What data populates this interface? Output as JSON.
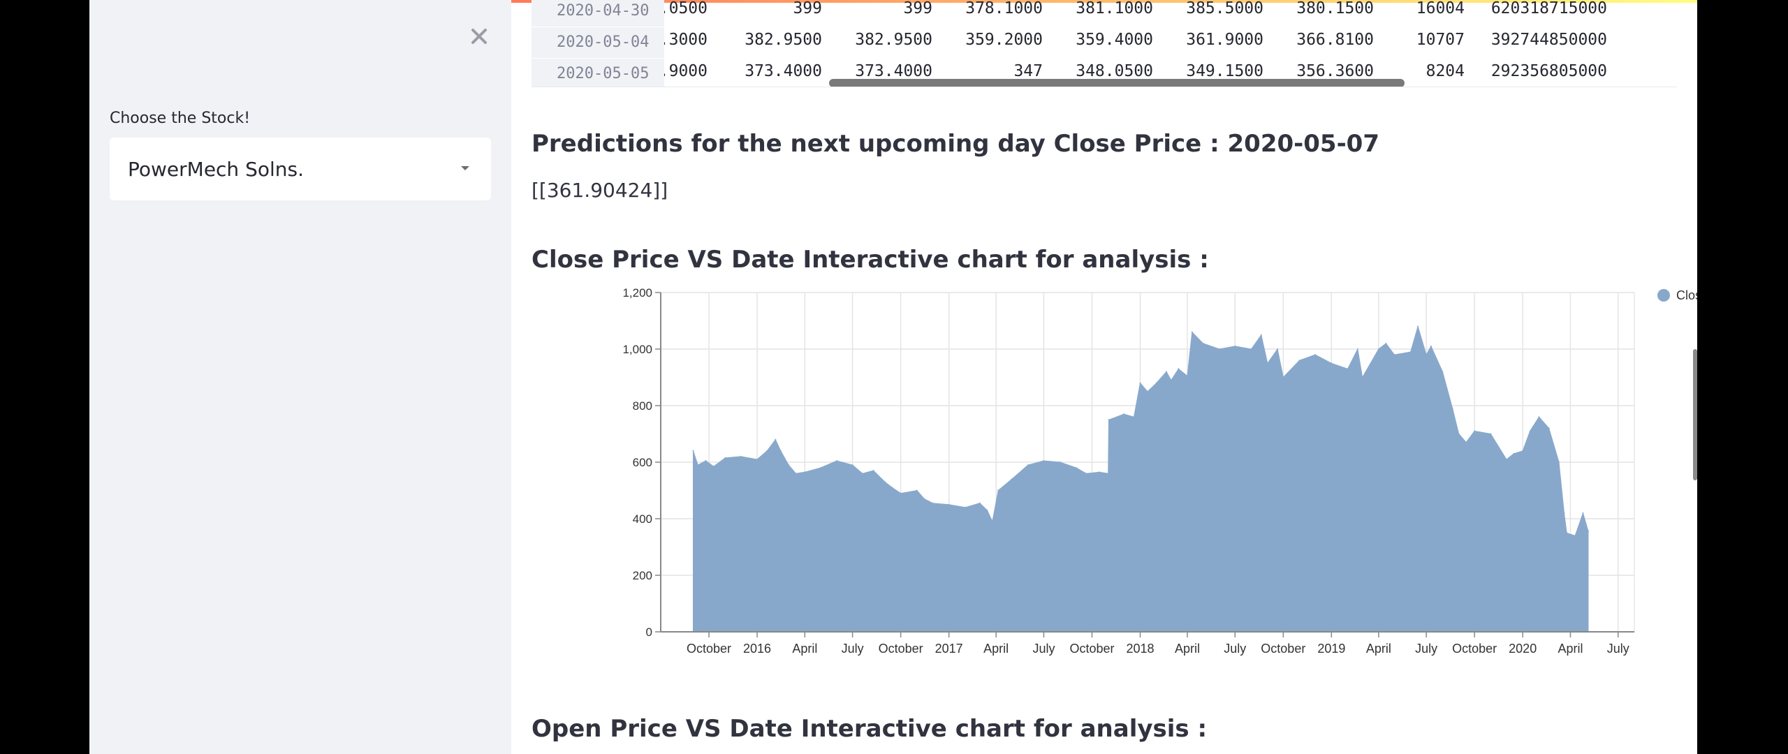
{
  "sidebar": {
    "stock_label": "Choose the Stock!",
    "selected_stock": "PowerMech Solns."
  },
  "table": {
    "rows": [
      {
        "index": "2020-04-30",
        "cells": [
          ".0500",
          "399",
          "399",
          "378.1000",
          "381.1000",
          "385.5000",
          "380.1500",
          "16004",
          "620318715000"
        ]
      },
      {
        "index": "2020-05-04",
        "cells": [
          ".3000",
          "382.9500",
          "382.9500",
          "359.2000",
          "359.4000",
          "361.9000",
          "366.8100",
          "10707",
          "392744850000"
        ]
      },
      {
        "index": "2020-05-05",
        "cells": [
          ".9000",
          "373.4000",
          "373.4000",
          "347",
          "348.0500",
          "349.1500",
          "356.3600",
          "8204",
          "292356805000"
        ]
      }
    ]
  },
  "prediction": {
    "heading": "Predictions for the next upcoming day Close Price : 2020-05-07",
    "value": "[[361.90424]]"
  },
  "close_chart_heading": "Close Price VS Date Interactive chart for analysis :",
  "open_chart_heading": "Open Price VS Date Interactive chart for analysis :",
  "colors": {
    "series": "#88a8cb",
    "accent": "#ff4b4b"
  },
  "chart_data": {
    "type": "area",
    "title": "",
    "xlabel": "",
    "ylabel": "",
    "ylim": [
      0,
      1200
    ],
    "yticks": [
      0,
      200,
      400,
      600,
      800,
      1000,
      1200
    ],
    "ytick_labels": [
      "0",
      "200",
      "400",
      "600",
      "800",
      "1,000",
      "1,200"
    ],
    "x_range": [
      "2015-07-01",
      "2020-08-01"
    ],
    "xticks": [
      {
        "date": "2015-10-01",
        "label": "October"
      },
      {
        "date": "2016-01-01",
        "label": "2016"
      },
      {
        "date": "2016-04-01",
        "label": "April"
      },
      {
        "date": "2016-07-01",
        "label": "July"
      },
      {
        "date": "2016-10-01",
        "label": "October"
      },
      {
        "date": "2017-01-01",
        "label": "2017"
      },
      {
        "date": "2017-04-01",
        "label": "April"
      },
      {
        "date": "2017-07-01",
        "label": "July"
      },
      {
        "date": "2017-10-01",
        "label": "October"
      },
      {
        "date": "2018-01-01",
        "label": "2018"
      },
      {
        "date": "2018-04-01",
        "label": "April"
      },
      {
        "date": "2018-07-01",
        "label": "July"
      },
      {
        "date": "2018-10-01",
        "label": "October"
      },
      {
        "date": "2019-01-01",
        "label": "2019"
      },
      {
        "date": "2019-04-01",
        "label": "April"
      },
      {
        "date": "2019-07-01",
        "label": "July"
      },
      {
        "date": "2019-10-01",
        "label": "October"
      },
      {
        "date": "2020-01-01",
        "label": "2020"
      },
      {
        "date": "2020-04-01",
        "label": "April"
      },
      {
        "date": "2020-07-01",
        "label": "July"
      }
    ],
    "grid": true,
    "legend_position": "top-right",
    "series": [
      {
        "name": "Close",
        "points": [
          [
            "2015-09-01",
            640
          ],
          [
            "2015-09-10",
            590
          ],
          [
            "2015-09-25",
            605
          ],
          [
            "2015-10-10",
            585
          ],
          [
            "2015-11-01",
            615
          ],
          [
            "2015-12-01",
            620
          ],
          [
            "2016-01-01",
            610
          ],
          [
            "2016-01-20",
            640
          ],
          [
            "2016-02-05",
            680
          ],
          [
            "2016-02-15",
            640
          ],
          [
            "2016-03-01",
            590
          ],
          [
            "2016-03-15",
            560
          ],
          [
            "2016-04-01",
            565
          ],
          [
            "2016-05-01",
            580
          ],
          [
            "2016-06-01",
            605
          ],
          [
            "2016-07-01",
            590
          ],
          [
            "2016-07-20",
            560
          ],
          [
            "2016-08-10",
            570
          ],
          [
            "2016-09-01",
            530
          ],
          [
            "2016-09-15",
            510
          ],
          [
            "2016-10-01",
            490
          ],
          [
            "2016-11-01",
            500
          ],
          [
            "2016-11-15",
            470
          ],
          [
            "2016-12-01",
            455
          ],
          [
            "2017-01-01",
            450
          ],
          [
            "2017-02-01",
            440
          ],
          [
            "2017-03-01",
            455
          ],
          [
            "2017-03-15",
            430
          ],
          [
            "2017-03-25",
            390
          ],
          [
            "2017-04-05",
            500
          ],
          [
            "2017-05-01",
            540
          ],
          [
            "2017-06-01",
            590
          ],
          [
            "2017-07-01",
            605
          ],
          [
            "2017-08-01",
            600
          ],
          [
            "2017-09-01",
            580
          ],
          [
            "2017-09-20",
            560
          ],
          [
            "2017-10-15",
            565
          ],
          [
            "2017-11-01",
            560
          ],
          [
            "2017-11-02",
            750
          ],
          [
            "2017-12-01",
            770
          ],
          [
            "2017-12-20",
            760
          ],
          [
            "2018-01-01",
            880
          ],
          [
            "2018-01-15",
            850
          ],
          [
            "2018-02-01",
            880
          ],
          [
            "2018-02-20",
            920
          ],
          [
            "2018-03-01",
            890
          ],
          [
            "2018-03-15",
            930
          ],
          [
            "2018-04-01",
            905
          ],
          [
            "2018-04-10",
            1060
          ],
          [
            "2018-05-01",
            1020
          ],
          [
            "2018-06-01",
            1000
          ],
          [
            "2018-07-01",
            1010
          ],
          [
            "2018-08-01",
            1000
          ],
          [
            "2018-08-20",
            1050
          ],
          [
            "2018-09-01",
            950
          ],
          [
            "2018-09-20",
            1000
          ],
          [
            "2018-10-01",
            900
          ],
          [
            "2018-11-01",
            960
          ],
          [
            "2018-12-01",
            980
          ],
          [
            "2019-01-01",
            950
          ],
          [
            "2019-02-01",
            930
          ],
          [
            "2019-02-20",
            1000
          ],
          [
            "2019-03-01",
            900
          ],
          [
            "2019-04-01",
            1000
          ],
          [
            "2019-04-15",
            1020
          ],
          [
            "2019-05-01",
            980
          ],
          [
            "2019-06-01",
            990
          ],
          [
            "2019-06-15",
            1080
          ],
          [
            "2019-07-01",
            980
          ],
          [
            "2019-07-10",
            1010
          ],
          [
            "2019-08-01",
            920
          ],
          [
            "2019-08-20",
            790
          ],
          [
            "2019-09-01",
            700
          ],
          [
            "2019-09-15",
            670
          ],
          [
            "2019-10-01",
            710
          ],
          [
            "2019-11-01",
            700
          ],
          [
            "2019-12-01",
            610
          ],
          [
            "2019-12-15",
            630
          ],
          [
            "2020-01-01",
            640
          ],
          [
            "2020-01-15",
            710
          ],
          [
            "2020-02-01",
            760
          ],
          [
            "2020-02-20",
            720
          ],
          [
            "2020-03-10",
            600
          ],
          [
            "2020-03-20",
            420
          ],
          [
            "2020-03-25",
            350
          ],
          [
            "2020-04-10",
            340
          ],
          [
            "2020-04-25",
            420
          ],
          [
            "2020-05-05",
            356
          ]
        ]
      }
    ]
  }
}
